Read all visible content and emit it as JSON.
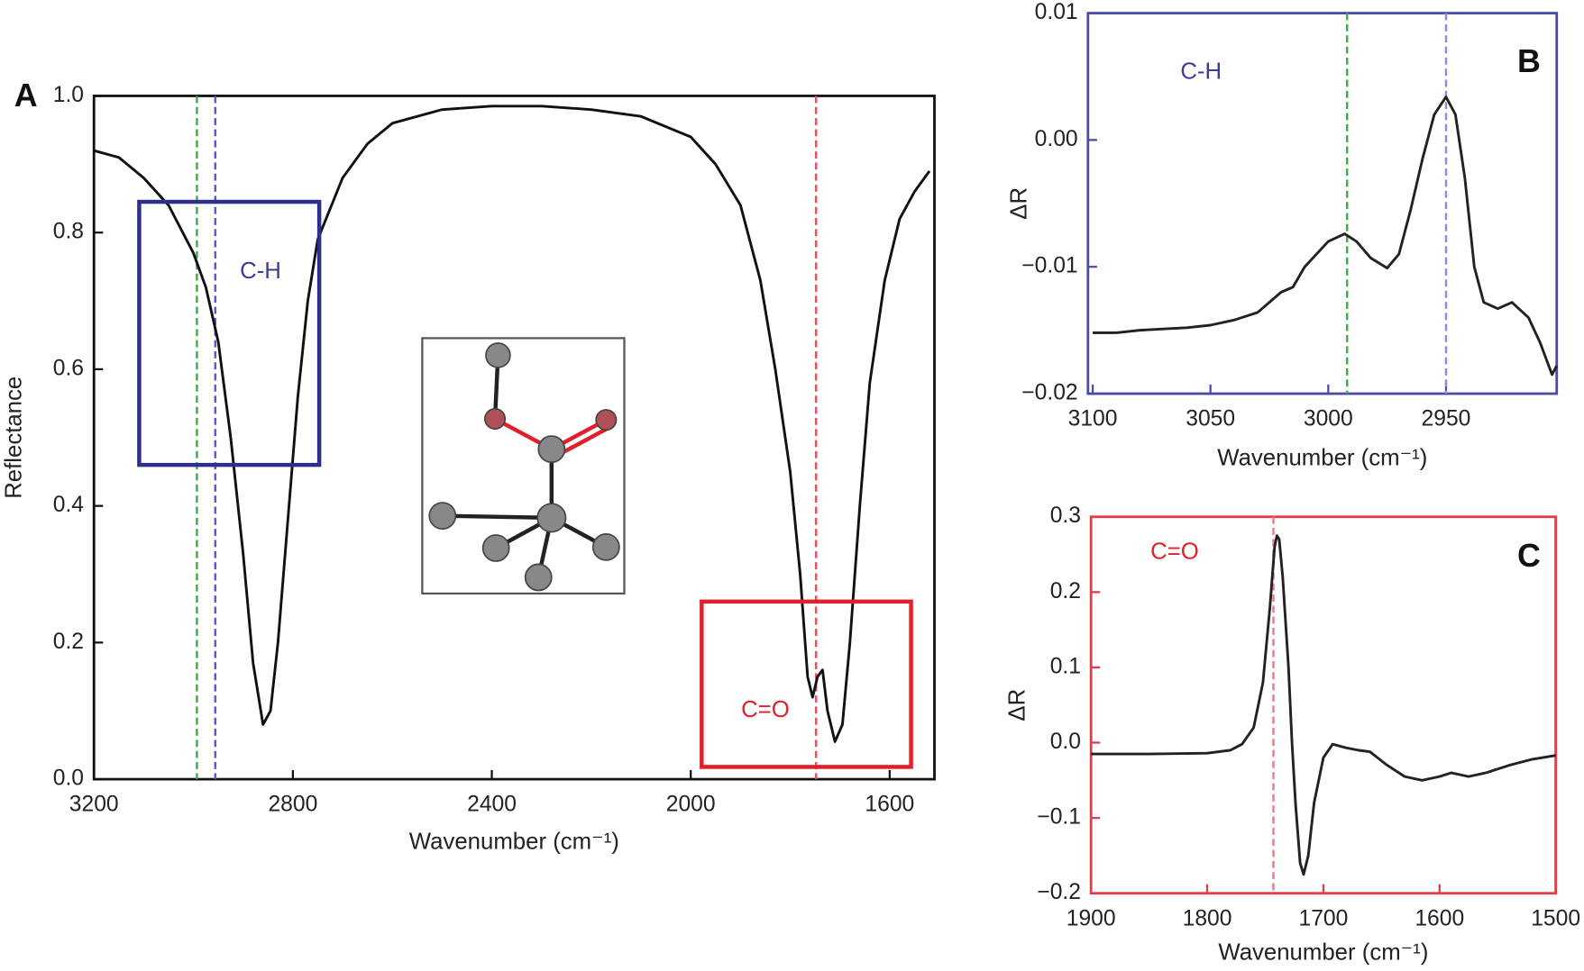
{
  "chart_data": [
    {
      "type": "line",
      "panel_label": "A",
      "xlabel": "Wavenumber (cm⁻¹)",
      "ylabel": "Reflectance",
      "frame_color": "#111111",
      "color": "#111111",
      "xlim": [
        3200,
        1510
      ],
      "ylim": [
        0,
        1
      ],
      "xticks": [
        3200,
        2800,
        2400,
        2000,
        1600
      ],
      "yticks": [
        {
          "value": 0,
          "label": "0.0"
        },
        0.2,
        0.4,
        0.6,
        0.8,
        {
          "value": 1,
          "label": "1.0"
        }
      ],
      "x": [
        3200,
        3150,
        3100,
        3050,
        3000,
        2975,
        2950,
        2925,
        2900,
        2880,
        2860,
        2845,
        2830,
        2810,
        2790,
        2770,
        2750,
        2700,
        2650,
        2600,
        2500,
        2400,
        2300,
        2200,
        2100,
        2000,
        1950,
        1900,
        1860,
        1830,
        1800,
        1780,
        1765,
        1755,
        1745,
        1735,
        1725,
        1710,
        1695,
        1680,
        1660,
        1640,
        1610,
        1580,
        1550,
        1520
      ],
      "values": [
        0.92,
        0.91,
        0.88,
        0.84,
        0.77,
        0.72,
        0.64,
        0.5,
        0.33,
        0.17,
        0.08,
        0.1,
        0.2,
        0.38,
        0.56,
        0.7,
        0.79,
        0.88,
        0.93,
        0.96,
        0.98,
        0.985,
        0.985,
        0.98,
        0.97,
        0.94,
        0.9,
        0.84,
        0.73,
        0.6,
        0.45,
        0.3,
        0.15,
        0.12,
        0.15,
        0.16,
        0.1,
        0.055,
        0.08,
        0.2,
        0.4,
        0.58,
        0.73,
        0.82,
        0.86,
        0.89
      ],
      "reference_lines": [
        {
          "x": 2993,
          "color": "#3cb043"
        },
        {
          "x": 2956,
          "color": "#5a5ac8"
        },
        {
          "x": 1748,
          "color": "#e8505a"
        }
      ],
      "regions": [
        {
          "xlim": [
            3109,
            2747
          ],
          "ylim": [
            0.46,
            0.845
          ],
          "color": "#2e2e8c"
        },
        {
          "xlim": [
            1978,
            1557
          ],
          "ylim": [
            0.018,
            0.26
          ],
          "color": "#e0202a"
        }
      ],
      "annotations": [
        {
          "text": "C-H",
          "x": 2865,
          "y": 0.742,
          "color": "#3c3c9c"
        },
        {
          "text": "C=O",
          "x": 1850,
          "y": 0.1,
          "color": "#e0202a"
        }
      ]
    },
    {
      "type": "line",
      "panel_label": "B",
      "xlabel": "Wavenumber (cm⁻¹)",
      "ylabel": "ΔR",
      "frame_color": "#4a4aa8",
      "color": "#222222",
      "xlim": [
        3102,
        2903
      ],
      "ylim": [
        -0.02,
        0.01
      ],
      "xticks": [
        3100,
        3050,
        3000,
        2950
      ],
      "yticks": [
        {
          "value": -0.02,
          "label": "−0.02"
        },
        {
          "value": -0.01,
          "label": "−0.01"
        },
        {
          "value": 0,
          "label": "0.00"
        },
        0.01
      ],
      "x": [
        3100,
        3090,
        3080,
        3070,
        3060,
        3050,
        3040,
        3030,
        3025,
        3020,
        3015,
        3010,
        3005,
        3000,
        2993,
        2988,
        2982,
        2975,
        2970,
        2965,
        2960,
        2955,
        2950,
        2946,
        2942,
        2938,
        2934,
        2928,
        2922,
        2915,
        2910,
        2905,
        2903
      ],
      "values": [
        -0.0152,
        -0.0152,
        -0.015,
        -0.0149,
        -0.0148,
        -0.0146,
        -0.0142,
        -0.0136,
        -0.0128,
        -0.012,
        -0.0116,
        -0.01,
        -0.009,
        -0.008,
        -0.0074,
        -0.008,
        -0.0093,
        -0.0101,
        -0.009,
        -0.0055,
        -0.0015,
        0.002,
        0.0034,
        0.002,
        -0.003,
        -0.01,
        -0.0128,
        -0.0133,
        -0.0128,
        -0.014,
        -0.016,
        -0.0185,
        -0.0178
      ],
      "reference_lines": [
        {
          "x": 2992,
          "color": "#3cb043"
        },
        {
          "x": 2950,
          "color": "#8c8ce0"
        }
      ],
      "annotations": [
        {
          "text": "C-H",
          "x": 3054,
          "y": 0.0053,
          "color": "#3c3c9c"
        }
      ]
    },
    {
      "type": "line",
      "panel_label": "C",
      "xlabel": "Wavenumber (cm⁻¹)",
      "ylabel": "ΔR",
      "frame_color": "#e83a44",
      "color": "#222222",
      "xlim": [
        1900,
        1500
      ],
      "ylim": [
        -0.2,
        0.3
      ],
      "xticks": [
        1900,
        1800,
        1700,
        1600,
        1500
      ],
      "yticks": [
        {
          "value": -0.2,
          "label": "−0.2"
        },
        {
          "value": -0.1,
          "label": "−0.1"
        },
        {
          "value": 0,
          "label": "0.0"
        },
        0.1,
        0.2,
        0.3
      ],
      "x": [
        1900,
        1850,
        1800,
        1780,
        1770,
        1760,
        1752,
        1746,
        1742,
        1740,
        1738,
        1735,
        1730,
        1727,
        1724,
        1720,
        1717,
        1713,
        1708,
        1700,
        1692,
        1680,
        1670,
        1660,
        1645,
        1630,
        1615,
        1600,
        1590,
        1575,
        1560,
        1540,
        1520,
        1500
      ],
      "values": [
        -0.015,
        -0.015,
        -0.014,
        -0.01,
        -0.002,
        0.02,
        0.08,
        0.18,
        0.26,
        0.275,
        0.27,
        0.22,
        0.1,
        0,
        -0.08,
        -0.16,
        -0.175,
        -0.15,
        -0.08,
        -0.02,
        -0.002,
        -0.007,
        -0.01,
        -0.012,
        -0.03,
        -0.045,
        -0.05,
        -0.045,
        -0.04,
        -0.045,
        -0.04,
        -0.03,
        -0.022,
        -0.017
      ],
      "reference_lines": [
        {
          "x": 1743,
          "color": "#f07a84"
        }
      ],
      "annotations": [
        {
          "text": "C=O",
          "x": 1828,
          "y": 0.252,
          "color": "#e0202a"
        }
      ]
    }
  ]
}
